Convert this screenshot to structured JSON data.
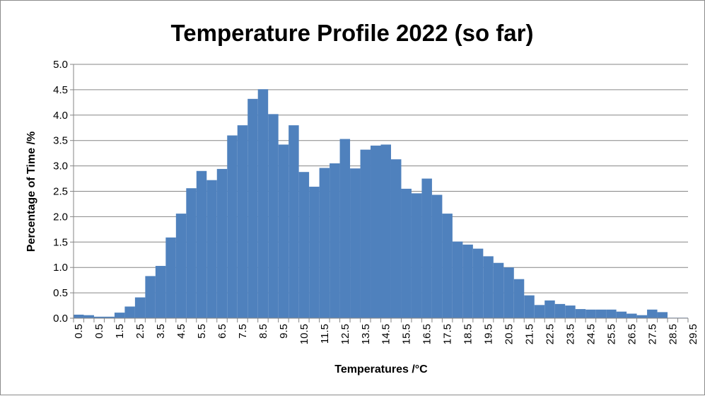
{
  "chart_data": {
    "type": "bar",
    "title": "Temperature Profile 2022 (so far)",
    "xlabel": "Temperatures /°C",
    "ylabel": "Percentage of Time /%",
    "ylim": [
      0,
      5.0
    ],
    "y_ticks": [
      "0.0",
      "0.5",
      "1.0",
      "1.5",
      "2.0",
      "2.5",
      "3.0",
      "3.5",
      "4.0",
      "4.5",
      "5.0"
    ],
    "x_tick_labels": [
      "0.5",
      "0.5",
      "1.5",
      "2.5",
      "3.5",
      "4.5",
      "5.5",
      "6.5",
      "7.5",
      "8.5",
      "9.5",
      "10.5",
      "11.5",
      "12.5",
      "13.5",
      "14.5",
      "15.5",
      "16.5",
      "17.5",
      "18.5",
      "19.5",
      "20.5",
      "21.5",
      "22.5",
      "23.5",
      "24.5",
      "25.5",
      "26.5",
      "27.5",
      "28.5",
      "29.5"
    ],
    "bin_width": 0.5,
    "grid": true,
    "legend": "none",
    "bar_color": "#4f81bd",
    "values": [
      0.07,
      0.06,
      0.03,
      0.03,
      0.11,
      0.23,
      0.41,
      0.83,
      1.03,
      1.59,
      2.06,
      2.56,
      2.9,
      2.72,
      2.94,
      3.6,
      3.8,
      4.32,
      4.51,
      4.02,
      3.42,
      3.8,
      2.88,
      2.59,
      2.96,
      3.05,
      3.53,
      2.95,
      3.32,
      3.4,
      3.42,
      3.13,
      2.55,
      2.46,
      2.75,
      2.43,
      2.06,
      1.51,
      1.45,
      1.37,
      1.22,
      1.09,
      1.0,
      0.77,
      0.45,
      0.26,
      0.35,
      0.28,
      0.25,
      0.18,
      0.17,
      0.17,
      0.17,
      0.13,
      0.09,
      0.06,
      0.17,
      0.12,
      0.01,
      0.01
    ]
  }
}
